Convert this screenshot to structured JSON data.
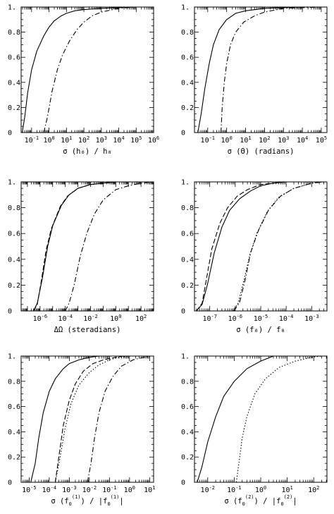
{
  "chart_data": [
    {
      "type": "line",
      "xscale": "log",
      "xlim_exp": [
        -1.6,
        6
      ],
      "ylim": [
        0,
        1.0
      ],
      "yticks": [
        "0",
        "0.2",
        "0.4",
        "0.6",
        "0.8",
        "1."
      ],
      "xtick_exps": [
        -1,
        0,
        1,
        2,
        3,
        4,
        5,
        6
      ],
      "xlabel": "σ (h₀) / h₀",
      "series": [
        {
          "style": "solid",
          "points": [
            [
              0.029,
              0
            ],
            [
              0.04,
              0.12
            ],
            [
              0.06,
              0.32
            ],
            [
              0.1,
              0.5
            ],
            [
              0.2,
              0.65
            ],
            [
              0.5,
              0.77
            ],
            [
              1.0,
              0.84
            ],
            [
              2,
              0.89
            ],
            [
              5,
              0.93
            ],
            [
              10,
              0.95
            ],
            [
              30,
              0.97
            ],
            [
              100,
              0.98
            ],
            [
              1000,
              0.99
            ],
            [
              100000,
              1.0
            ]
          ]
        },
        {
          "style": "dashdot",
          "points": [
            [
              0.5,
              0
            ],
            [
              0.8,
              0.12
            ],
            [
              1.5,
              0.33
            ],
            [
              3,
              0.5
            ],
            [
              6,
              0.62
            ],
            [
              15,
              0.73
            ],
            [
              40,
              0.82
            ],
            [
              100,
              0.88
            ],
            [
              300,
              0.93
            ],
            [
              1000,
              0.96
            ],
            [
              10000,
              0.99
            ],
            [
              100000,
              1.0
            ]
          ]
        }
      ]
    },
    {
      "type": "line",
      "xscale": "log",
      "xlim_exp": [
        -1.7,
        5.3
      ],
      "ylim": [
        0,
        1.0
      ],
      "yticks": [
        "0",
        "0.2",
        "0.4",
        "0.6",
        "0.8",
        "1."
      ],
      "xtick_exps": [
        -1,
        0,
        1,
        2,
        3,
        4,
        5
      ],
      "xlabel": "σ (Θ) (radians)",
      "series": [
        {
          "style": "solid",
          "points": [
            [
              0.03,
              0
            ],
            [
              0.045,
              0.15
            ],
            [
              0.07,
              0.35
            ],
            [
              0.12,
              0.55
            ],
            [
              0.2,
              0.7
            ],
            [
              0.4,
              0.82
            ],
            [
              1,
              0.9
            ],
            [
              3,
              0.95
            ],
            [
              10,
              0.97
            ],
            [
              100,
              0.99
            ],
            [
              10000,
              1.0
            ]
          ]
        },
        {
          "style": "dashdot",
          "points": [
            [
              0.5,
              0
            ],
            [
              0.58,
              0.2
            ],
            [
              0.75,
              0.4
            ],
            [
              1,
              0.55
            ],
            [
              1.6,
              0.7
            ],
            [
              3,
              0.8
            ],
            [
              8,
              0.88
            ],
            [
              30,
              0.93
            ],
            [
              100,
              0.96
            ],
            [
              1000,
              0.99
            ],
            [
              100000,
              1.0
            ]
          ]
        }
      ]
    },
    {
      "type": "line",
      "xscale": "log",
      "xlim_exp": [
        -7.5,
        3
      ],
      "ylim": [
        0,
        1.0
      ],
      "yticks": [
        "0",
        "0.2",
        "0.4",
        "0.6",
        "0.8",
        "1."
      ],
      "xtick_exps": [
        -6,
        -4,
        -2,
        0,
        2
      ],
      "xlabel": "ΔΩ (steradians)",
      "series": [
        {
          "style": "solid",
          "points": [
            [
              3e-07,
              0
            ],
            [
              6e-07,
              0.06
            ],
            [
              1.5e-06,
              0.25
            ],
            [
              4e-06,
              0.5
            ],
            [
              1e-05,
              0.66
            ],
            [
              5e-05,
              0.82
            ],
            [
              0.0002,
              0.9
            ],
            [
              0.001,
              0.95
            ],
            [
              0.01,
              0.98
            ],
            [
              0.1,
              0.99
            ],
            [
              1,
              1.0
            ]
          ]
        },
        {
          "style": "dashed",
          "points": [
            [
              3e-07,
              0
            ],
            [
              6e-07,
              0.05
            ],
            [
              1.2e-06,
              0.22
            ],
            [
              3e-06,
              0.47
            ],
            [
              8e-06,
              0.64
            ],
            [
              4e-05,
              0.81
            ],
            [
              0.00015,
              0.89
            ],
            [
              0.001,
              0.95
            ],
            [
              0.01,
              0.98
            ],
            [
              0.1,
              0.99
            ],
            [
              1,
              1.0
            ]
          ]
        },
        {
          "style": "dashdot",
          "points": [
            [
              0.0001,
              0
            ],
            [
              0.0002,
              0.06
            ],
            [
              0.0005,
              0.2
            ],
            [
              0.0015,
              0.42
            ],
            [
              0.005,
              0.6
            ],
            [
              0.02,
              0.75
            ],
            [
              0.1,
              0.86
            ],
            [
              1,
              0.94
            ],
            [
              10,
              0.97
            ],
            [
              100,
              0.99
            ],
            [
              1000,
              1.0
            ]
          ]
        }
      ]
    },
    {
      "type": "line",
      "xscale": "log",
      "xlim_exp": [
        -7.6,
        -2.4
      ],
      "ylim": [
        0,
        1.0
      ],
      "yticks": [
        "0",
        "0.2",
        "0.4",
        "0.6",
        "0.8",
        "1."
      ],
      "xtick_exps": [
        -7,
        -6,
        -5,
        -4,
        -3
      ],
      "xlabel": "σ (f₀) / f₀",
      "series": [
        {
          "style": "solid",
          "points": [
            [
              3e-08,
              0
            ],
            [
              5e-08,
              0.05
            ],
            [
              8e-08,
              0.2
            ],
            [
              1.5e-07,
              0.45
            ],
            [
              3e-07,
              0.65
            ],
            [
              6e-07,
              0.78
            ],
            [
              1.5e-06,
              0.87
            ],
            [
              4e-06,
              0.93
            ],
            [
              1e-05,
              0.97
            ],
            [
              3e-05,
              0.99
            ],
            [
              0.0001,
              1.0
            ]
          ]
        },
        {
          "style": "dashed",
          "points": [
            [
              3e-08,
              0
            ],
            [
              5e-08,
              0.06
            ],
            [
              7e-08,
              0.22
            ],
            [
              1.2e-07,
              0.48
            ],
            [
              2.5e-07,
              0.68
            ],
            [
              5e-07,
              0.8
            ],
            [
              1.2e-06,
              0.89
            ],
            [
              3e-06,
              0.94
            ],
            [
              1e-05,
              0.98
            ],
            [
              3e-05,
              0.99
            ],
            [
              0.0001,
              1.0
            ]
          ]
        },
        {
          "style": "dashdot",
          "points": [
            [
              9e-07,
              0
            ],
            [
              1.5e-06,
              0.07
            ],
            [
              2.5e-06,
              0.25
            ],
            [
              4e-06,
              0.45
            ],
            [
              8e-06,
              0.62
            ],
            [
              2e-05,
              0.78
            ],
            [
              6e-05,
              0.89
            ],
            [
              0.0002,
              0.95
            ],
            [
              0.001,
              0.99
            ],
            [
              0.003,
              1.0
            ]
          ]
        },
        {
          "style": "dotted",
          "points": [
            [
              8e-07,
              0
            ],
            [
              1.3e-06,
              0.06
            ],
            [
              2.2e-06,
              0.24
            ],
            [
              3.8e-06,
              0.44
            ],
            [
              7e-06,
              0.6
            ],
            [
              1.8e-05,
              0.77
            ],
            [
              5e-05,
              0.88
            ],
            [
              0.0002,
              0.95
            ],
            [
              0.001,
              0.99
            ],
            [
              0.003,
              1.0
            ]
          ]
        }
      ]
    },
    {
      "type": "line",
      "xscale": "log",
      "xlim_exp": [
        -5.4,
        1.2
      ],
      "ylim": [
        0,
        1.0
      ],
      "yticks": [
        "0",
        "0.2",
        "0.4",
        "0.6",
        "0.8",
        "1."
      ],
      "xtick_exps": [
        -5,
        -4,
        -3,
        -2,
        -1,
        0,
        1
      ],
      "xlabel_parts": {
        "prefix": "σ (f",
        "sub": "0",
        "sup": "(1)",
        "mid": ") / |f",
        "sub2": "0",
        "sup2": "(1)",
        "suffix": "|"
      },
      "series": [
        {
          "style": "solid",
          "points": [
            [
              1.2e-05,
              0
            ],
            [
              2e-05,
              0.15
            ],
            [
              3e-05,
              0.35
            ],
            [
              5e-05,
              0.55
            ],
            [
              0.0001,
              0.72
            ],
            [
              0.0002,
              0.82
            ],
            [
              0.0005,
              0.9
            ],
            [
              0.001,
              0.94
            ],
            [
              0.003,
              0.97
            ],
            [
              0.01,
              0.99
            ],
            [
              0.03,
              1.0
            ]
          ]
        },
        {
          "style": "dashed",
          "points": [
            [
              0.0002,
              0
            ],
            [
              0.0003,
              0.2
            ],
            [
              0.0005,
              0.45
            ],
            [
              0.001,
              0.65
            ],
            [
              0.002,
              0.78
            ],
            [
              0.005,
              0.88
            ],
            [
              0.015,
              0.94
            ],
            [
              0.05,
              0.97
            ],
            [
              0.2,
              0.99
            ],
            [
              0.5,
              1.0
            ]
          ]
        },
        {
          "style": "dotted",
          "points": [
            [
              0.0002,
              0
            ],
            [
              0.00035,
              0.2
            ],
            [
              0.0006,
              0.42
            ],
            [
              0.0012,
              0.62
            ],
            [
              0.003,
              0.77
            ],
            [
              0.01,
              0.87
            ],
            [
              0.03,
              0.93
            ],
            [
              0.1,
              0.97
            ],
            [
              0.3,
              0.99
            ],
            [
              1,
              1.0
            ]
          ]
        },
        {
          "style": "dashdot",
          "points": [
            [
              0.008,
              0
            ],
            [
              0.012,
              0.15
            ],
            [
              0.018,
              0.35
            ],
            [
              0.03,
              0.55
            ],
            [
              0.06,
              0.72
            ],
            [
              0.15,
              0.84
            ],
            [
              0.4,
              0.92
            ],
            [
              1.5,
              0.97
            ],
            [
              5,
              0.99
            ],
            [
              10,
              1.0
            ]
          ]
        }
      ]
    },
    {
      "type": "line",
      "xscale": "log",
      "xlim_exp": [
        -2.5,
        2.5
      ],
      "ylim": [
        0,
        1.0
      ],
      "yticks": [
        "0",
        "0.2",
        "0.4",
        "0.6",
        "0.8",
        "1."
      ],
      "xtick_exps": [
        -2,
        -1,
        0,
        1,
        2
      ],
      "xlabel_parts": {
        "prefix": "σ (f",
        "sub": "0",
        "sup": "(2)",
        "mid": ") / |f",
        "sub2": "0",
        "sup2": "(2)",
        "suffix": "|"
      },
      "series": [
        {
          "style": "solid",
          "points": [
            [
              0.004,
              0
            ],
            [
              0.006,
              0.12
            ],
            [
              0.01,
              0.32
            ],
            [
              0.02,
              0.52
            ],
            [
              0.04,
              0.68
            ],
            [
              0.1,
              0.8
            ],
            [
              0.3,
              0.9
            ],
            [
              1,
              0.96
            ],
            [
              3,
              1.0
            ]
          ]
        },
        {
          "style": "dotted",
          "points": [
            [
              0.12,
              0
            ],
            [
              0.15,
              0.15
            ],
            [
              0.2,
              0.35
            ],
            [
              0.3,
              0.52
            ],
            [
              0.6,
              0.7
            ],
            [
              1.5,
              0.82
            ],
            [
              5,
              0.91
            ],
            [
              20,
              0.96
            ],
            [
              80,
              0.99
            ],
            [
              200,
              1.0
            ]
          ]
        }
      ]
    }
  ],
  "panels_text": {
    "p0": {
      "xlabel": "σ (h₀) / h₀"
    },
    "p1": {
      "xlabel": "σ (Θ) (radians)"
    },
    "p2": {
      "xlabel": "ΔΩ (steradians)"
    },
    "p3": {
      "xlabel": "σ (f₀) / f₀"
    }
  }
}
